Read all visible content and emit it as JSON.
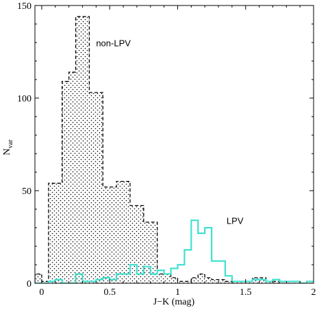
{
  "chart_data": {
    "type": "histogram",
    "xlabel": "J−K (mag)",
    "ylabel_main": "N",
    "ylabel_sub": "var",
    "xlim": [
      -0.05,
      2.0
    ],
    "ylim": [
      0,
      150
    ],
    "xticks": [
      0,
      0.5,
      1,
      1.5,
      2
    ],
    "xtick_labels": [
      "0",
      "0.5",
      "1",
      "1.5",
      "2"
    ],
    "yticks": [
      0,
      50,
      100,
      150
    ],
    "ytick_labels": [
      "0",
      "50",
      "100",
      "150"
    ],
    "grid": false,
    "bin_width": 0.05,
    "series": [
      {
        "name": "non-LPV",
        "style": "dashed-dotted-fill",
        "color": "#000000",
        "bin_starts": [
          -0.05,
          0.0,
          0.05,
          0.1,
          0.15,
          0.2,
          0.25,
          0.3,
          0.35,
          0.4,
          0.45,
          0.5,
          0.55,
          0.6,
          0.65,
          0.7,
          0.75,
          0.8,
          0.85,
          0.9,
          0.95,
          1.0,
          1.05,
          1.1,
          1.15,
          1.2,
          1.25,
          1.3,
          1.35,
          1.4,
          1.45,
          1.5,
          1.55,
          1.6,
          1.65,
          1.7,
          1.75,
          1.8,
          1.85,
          1.9,
          1.95
        ],
        "values": [
          5,
          1,
          54,
          54,
          109,
          114,
          144,
          144,
          103,
          103,
          52,
          52,
          55,
          55,
          42,
          42,
          33,
          33,
          5,
          5,
          3,
          1,
          1,
          3,
          5,
          3,
          2,
          2,
          1,
          1,
          1,
          1,
          3,
          3,
          1,
          1,
          0,
          0,
          0,
          0,
          0
        ]
      },
      {
        "name": "LPV",
        "style": "solid",
        "color": "#40e0d0",
        "bin_starts": [
          -0.05,
          0.0,
          0.05,
          0.1,
          0.15,
          0.2,
          0.25,
          0.3,
          0.35,
          0.4,
          0.45,
          0.5,
          0.55,
          0.6,
          0.65,
          0.7,
          0.75,
          0.8,
          0.85,
          0.9,
          0.95,
          1.0,
          1.05,
          1.1,
          1.15,
          1.2,
          1.25,
          1.3,
          1.35,
          1.4,
          1.45,
          1.5,
          1.55,
          1.6,
          1.65,
          1.7,
          1.75,
          1.8,
          1.85,
          1.9,
          1.95
        ],
        "values": [
          0,
          0,
          1,
          2,
          0,
          0,
          5,
          1,
          1,
          2,
          3,
          2,
          5,
          5,
          10,
          5,
          9,
          5,
          7,
          5,
          8,
          10,
          18,
          34,
          27,
          30,
          12,
          12,
          4,
          1,
          1,
          1,
          2,
          2,
          1,
          2,
          1,
          1,
          1,
          0,
          1
        ]
      }
    ],
    "annotations": [
      {
        "text": "non-LPV",
        "x": 0.4,
        "y": 128
      },
      {
        "text": "LPV",
        "x": 1.36,
        "y": 32
      }
    ]
  }
}
